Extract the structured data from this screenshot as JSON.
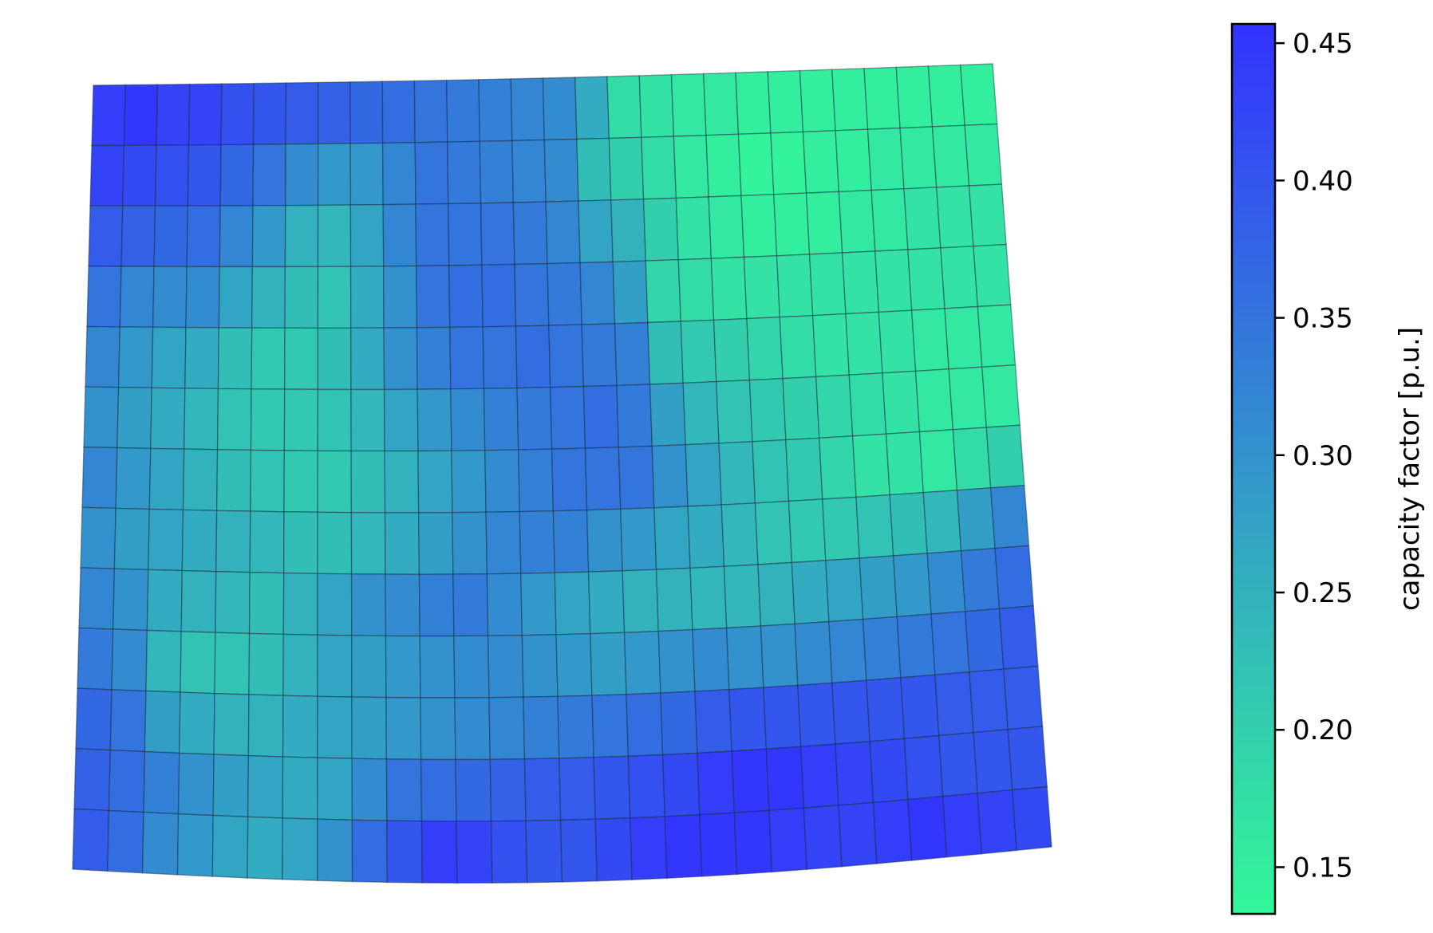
{
  "chart_data": {
    "type": "heatmap",
    "title": "",
    "xlabel": "",
    "ylabel": "",
    "grid_rows": 13,
    "grid_cols": 28,
    "colormap": {
      "low_color": "#33f898",
      "high_color": "#3333ff"
    },
    "colorbar": {
      "label": "capacity factor [p.u.]",
      "range": [
        0.133,
        0.457
      ],
      "ticks": [
        0.15,
        0.2,
        0.25,
        0.3,
        0.35,
        0.4,
        0.45
      ],
      "tick_labels": [
        "0.15",
        "0.20",
        "0.25",
        "0.30",
        "0.35",
        "0.40",
        "0.45"
      ]
    },
    "values": [
      [
        0.44,
        0.45,
        0.43,
        0.43,
        0.41,
        0.4,
        0.39,
        0.38,
        0.37,
        0.36,
        0.35,
        0.34,
        0.33,
        0.32,
        0.31,
        0.26,
        0.18,
        0.17,
        0.16,
        0.16,
        0.15,
        0.15,
        0.15,
        0.15,
        0.15,
        0.15,
        0.15,
        0.15
      ],
      [
        0.43,
        0.42,
        0.41,
        0.4,
        0.37,
        0.35,
        0.31,
        0.29,
        0.29,
        0.32,
        0.35,
        0.34,
        0.33,
        0.32,
        0.31,
        0.23,
        0.2,
        0.18,
        0.16,
        0.15,
        0.14,
        0.14,
        0.15,
        0.15,
        0.16,
        0.16,
        0.16,
        0.16
      ],
      [
        0.39,
        0.38,
        0.37,
        0.36,
        0.32,
        0.29,
        0.25,
        0.24,
        0.27,
        0.32,
        0.35,
        0.35,
        0.35,
        0.34,
        0.32,
        0.27,
        0.25,
        0.2,
        0.17,
        0.16,
        0.15,
        0.15,
        0.15,
        0.16,
        0.16,
        0.17,
        0.17,
        0.17
      ],
      [
        0.35,
        0.32,
        0.31,
        0.31,
        0.27,
        0.25,
        0.23,
        0.22,
        0.26,
        0.3,
        0.35,
        0.36,
        0.36,
        0.35,
        0.34,
        0.32,
        0.28,
        0.19,
        0.18,
        0.17,
        0.17,
        0.17,
        0.17,
        0.17,
        0.17,
        0.17,
        0.17,
        0.17
      ],
      [
        0.32,
        0.29,
        0.27,
        0.26,
        0.23,
        0.21,
        0.21,
        0.23,
        0.26,
        0.3,
        0.33,
        0.35,
        0.35,
        0.36,
        0.35,
        0.34,
        0.33,
        0.23,
        0.21,
        0.2,
        0.19,
        0.18,
        0.17,
        0.17,
        0.17,
        0.16,
        0.16,
        0.16
      ],
      [
        0.3,
        0.28,
        0.26,
        0.24,
        0.22,
        0.21,
        0.21,
        0.22,
        0.24,
        0.27,
        0.29,
        0.31,
        0.33,
        0.34,
        0.35,
        0.36,
        0.34,
        0.28,
        0.24,
        0.22,
        0.21,
        0.2,
        0.19,
        0.18,
        0.17,
        0.16,
        0.16,
        0.16
      ],
      [
        0.32,
        0.29,
        0.27,
        0.25,
        0.23,
        0.22,
        0.21,
        0.21,
        0.23,
        0.25,
        0.27,
        0.29,
        0.31,
        0.33,
        0.35,
        0.35,
        0.35,
        0.3,
        0.27,
        0.24,
        0.22,
        0.21,
        0.19,
        0.17,
        0.17,
        0.16,
        0.18,
        0.2
      ],
      [
        0.3,
        0.28,
        0.27,
        0.26,
        0.25,
        0.24,
        0.23,
        0.23,
        0.24,
        0.26,
        0.28,
        0.3,
        0.32,
        0.33,
        0.33,
        0.3,
        0.29,
        0.27,
        0.26,
        0.24,
        0.22,
        0.21,
        0.21,
        0.22,
        0.23,
        0.24,
        0.28,
        0.32
      ],
      [
        0.32,
        0.3,
        0.26,
        0.25,
        0.24,
        0.23,
        0.25,
        0.27,
        0.3,
        0.31,
        0.33,
        0.34,
        0.31,
        0.29,
        0.27,
        0.26,
        0.25,
        0.25,
        0.24,
        0.24,
        0.25,
        0.26,
        0.27,
        0.28,
        0.29,
        0.31,
        0.34,
        0.36
      ],
      [
        0.34,
        0.31,
        0.24,
        0.22,
        0.22,
        0.23,
        0.25,
        0.27,
        0.28,
        0.29,
        0.3,
        0.31,
        0.31,
        0.3,
        0.29,
        0.28,
        0.29,
        0.3,
        0.31,
        0.3,
        0.3,
        0.31,
        0.32,
        0.33,
        0.34,
        0.35,
        0.37,
        0.39
      ],
      [
        0.37,
        0.35,
        0.28,
        0.26,
        0.25,
        0.25,
        0.26,
        0.27,
        0.28,
        0.29,
        0.3,
        0.31,
        0.32,
        0.33,
        0.34,
        0.35,
        0.36,
        0.37,
        0.39,
        0.4,
        0.4,
        0.4,
        0.4,
        0.4,
        0.4,
        0.39,
        0.39,
        0.39
      ],
      [
        0.38,
        0.36,
        0.33,
        0.3,
        0.28,
        0.27,
        0.26,
        0.27,
        0.31,
        0.35,
        0.36,
        0.37,
        0.38,
        0.39,
        0.39,
        0.4,
        0.41,
        0.42,
        0.44,
        0.45,
        0.45,
        0.44,
        0.43,
        0.42,
        0.41,
        0.4,
        0.4,
        0.4
      ],
      [
        0.39,
        0.36,
        0.31,
        0.29,
        0.27,
        0.26,
        0.27,
        0.3,
        0.36,
        0.4,
        0.44,
        0.43,
        0.41,
        0.4,
        0.4,
        0.42,
        0.44,
        0.45,
        0.45,
        0.45,
        0.44,
        0.43,
        0.43,
        0.44,
        0.45,
        0.44,
        0.43,
        0.42
      ]
    ]
  }
}
